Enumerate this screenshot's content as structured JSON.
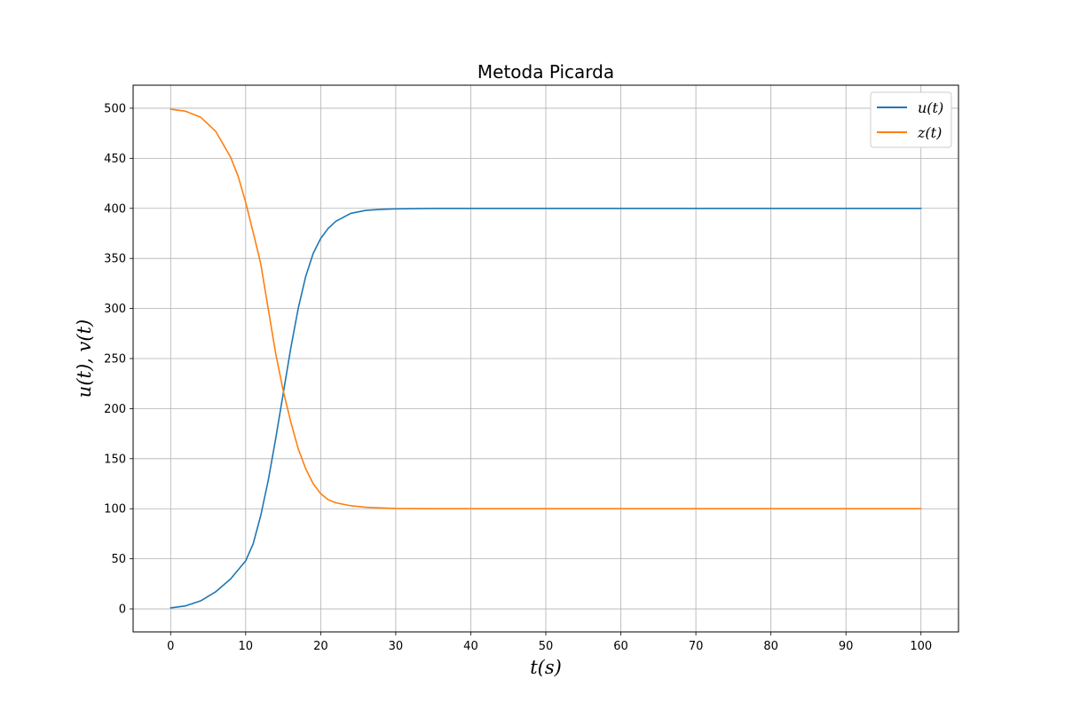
{
  "chart_data": {
    "type": "line",
    "title": "Metoda Picarda",
    "xlabel": "t(s)",
    "ylabel": "u(t), v(t)",
    "xlim": [
      -5,
      105
    ],
    "ylim": [
      -23,
      523
    ],
    "x_ticks": [
      0,
      10,
      20,
      30,
      40,
      50,
      60,
      70,
      80,
      90,
      100
    ],
    "y_ticks": [
      0,
      50,
      100,
      150,
      200,
      250,
      300,
      350,
      400,
      450,
      500
    ],
    "grid": true,
    "legend_position": "top-right",
    "series": [
      {
        "name": "u(t)",
        "color": "#1f77b4",
        "x": [
          0,
          2,
          4,
          6,
          8,
          10,
          11,
          12,
          13,
          14,
          15,
          16,
          17,
          18,
          19,
          20,
          21,
          22,
          24,
          26,
          28,
          30,
          35,
          40,
          50,
          60,
          70,
          80,
          90,
          100
        ],
        "y": [
          1,
          3,
          8,
          17,
          30,
          48,
          65,
          93,
          128,
          170,
          215,
          260,
          300,
          332,
          355,
          370,
          380,
          387,
          395,
          398,
          399,
          399.5,
          400,
          400,
          400,
          400,
          400,
          400,
          400,
          400
        ]
      },
      {
        "name": "z(t)",
        "color": "#ff7f0e",
        "x": [
          0,
          2,
          4,
          6,
          8,
          9,
          10,
          11,
          12,
          13,
          14,
          15,
          16,
          17,
          18,
          19,
          20,
          21,
          22,
          24,
          26,
          28,
          30,
          35,
          40,
          50,
          60,
          70,
          80,
          90,
          100
        ],
        "y": [
          499,
          497,
          491,
          477,
          451,
          432,
          406,
          376,
          345,
          300,
          255,
          218,
          187,
          160,
          140,
          125,
          115,
          109,
          106,
          103,
          101.5,
          100.8,
          100.3,
          100,
          100,
          100,
          100,
          100,
          100,
          100,
          100
        ]
      }
    ]
  }
}
